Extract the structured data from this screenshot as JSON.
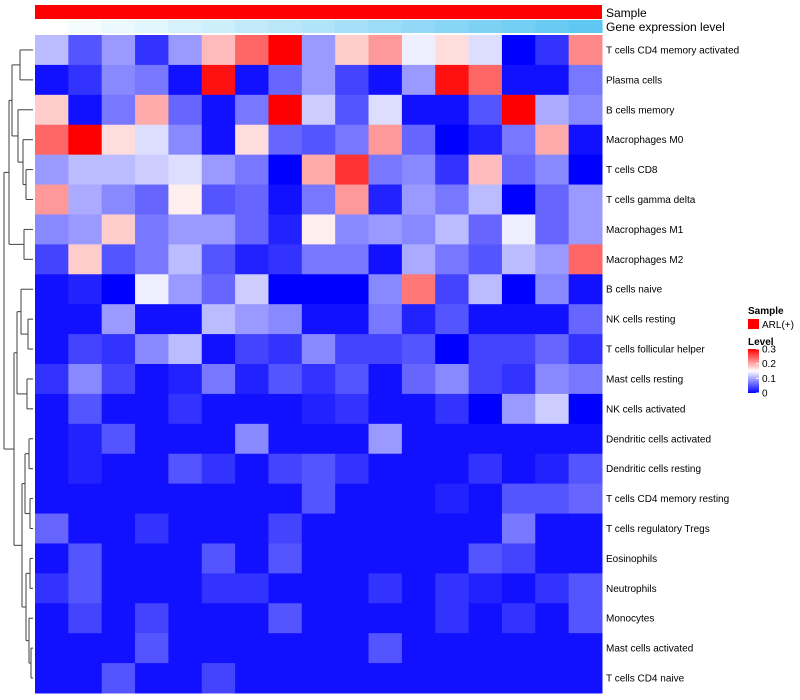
{
  "chart_data": {
    "type": "heatmap",
    "title": "",
    "annotations": [
      {
        "name": "Sample",
        "color": "#ff0000"
      },
      {
        "name": "Gene expression level",
        "gradient": [
          "#ffffff",
          "#5fc8f2"
        ]
      }
    ],
    "rows": [
      "T cells CD4 memory activated",
      "Plasma cells",
      "B cells memory",
      "Macrophages M0",
      "T cells CD8",
      "T cells gamma delta",
      "Macrophages M1",
      "Macrophages M2",
      "B cells naive",
      "NK cells resting",
      "T cells follicular helper",
      "Mast cells resting",
      "NK cells activated",
      "Dendritic cells activated",
      "Dendritic cells resting",
      "T cells CD4 memory resting",
      "T cells regulatory  Tregs",
      "Eosinophils",
      "Neutrophils",
      "Monocytes",
      "Mast cells activated",
      "T cells CD4 naive"
    ],
    "n_columns": 17,
    "values": [
      [
        0.11,
        0.05,
        0.09,
        0.03,
        0.09,
        0.19,
        0.24,
        0.3,
        0.09,
        0.18,
        0.21,
        0.14,
        0.17,
        0.13,
        0.0,
        0.03,
        0.22
      ],
      [
        0.01,
        0.03,
        0.08,
        0.07,
        0.01,
        0.29,
        0.01,
        0.06,
        0.09,
        0.04,
        0.01,
        0.09,
        0.29,
        0.24,
        0.01,
        0.01,
        0.07
      ],
      [
        0.18,
        0.01,
        0.07,
        0.2,
        0.06,
        0.01,
        0.07,
        0.3,
        0.12,
        0.05,
        0.13,
        0.01,
        0.01,
        0.05,
        0.3,
        0.1,
        0.08
      ],
      [
        0.24,
        0.3,
        0.17,
        0.13,
        0.08,
        0.01,
        0.17,
        0.06,
        0.05,
        0.07,
        0.21,
        0.06,
        0.0,
        0.02,
        0.07,
        0.2,
        0.01
      ],
      [
        0.09,
        0.11,
        0.11,
        0.12,
        0.13,
        0.09,
        0.07,
        0.0,
        0.2,
        0.27,
        0.07,
        0.08,
        0.03,
        0.19,
        0.06,
        0.08,
        0.0
      ],
      [
        0.21,
        0.1,
        0.08,
        0.06,
        0.16,
        0.05,
        0.06,
        0.01,
        0.07,
        0.21,
        0.02,
        0.09,
        0.07,
        0.11,
        0.0,
        0.06,
        0.09
      ],
      [
        0.08,
        0.09,
        0.18,
        0.07,
        0.09,
        0.09,
        0.06,
        0.02,
        0.16,
        0.08,
        0.09,
        0.08,
        0.11,
        0.06,
        0.14,
        0.06,
        0.09
      ],
      [
        0.04,
        0.18,
        0.05,
        0.07,
        0.11,
        0.05,
        0.02,
        0.03,
        0.07,
        0.07,
        0.01,
        0.1,
        0.07,
        0.05,
        0.11,
        0.09,
        0.24
      ],
      [
        0.01,
        0.02,
        0.0,
        0.14,
        0.09,
        0.06,
        0.12,
        0.0,
        0.0,
        0.0,
        0.08,
        0.23,
        0.04,
        0.11,
        0.0,
        0.08,
        0.01
      ],
      [
        0.01,
        0.01,
        0.09,
        0.01,
        0.01,
        0.11,
        0.09,
        0.08,
        0.01,
        0.01,
        0.07,
        0.02,
        0.05,
        0.01,
        0.01,
        0.01,
        0.06
      ],
      [
        0.01,
        0.04,
        0.03,
        0.08,
        0.11,
        0.01,
        0.04,
        0.03,
        0.08,
        0.04,
        0.04,
        0.05,
        0.0,
        0.04,
        0.04,
        0.06,
        0.03
      ],
      [
        0.03,
        0.08,
        0.04,
        0.01,
        0.02,
        0.07,
        0.02,
        0.05,
        0.03,
        0.05,
        0.01,
        0.06,
        0.08,
        0.04,
        0.03,
        0.08,
        0.07
      ],
      [
        0.01,
        0.05,
        0.01,
        0.01,
        0.03,
        0.01,
        0.01,
        0.01,
        0.02,
        0.03,
        0.01,
        0.01,
        0.03,
        0.0,
        0.09,
        0.12,
        0.0
      ],
      [
        0.01,
        0.02,
        0.05,
        0.01,
        0.01,
        0.01,
        0.08,
        0.01,
        0.01,
        0.01,
        0.09,
        0.01,
        0.01,
        0.01,
        0.01,
        0.01,
        0.01
      ],
      [
        0.01,
        0.02,
        0.01,
        0.01,
        0.05,
        0.03,
        0.01,
        0.04,
        0.05,
        0.03,
        0.01,
        0.01,
        0.01,
        0.03,
        0.01,
        0.02,
        0.05
      ],
      [
        0.01,
        0.01,
        0.01,
        0.01,
        0.01,
        0.01,
        0.01,
        0.01,
        0.05,
        0.01,
        0.01,
        0.01,
        0.02,
        0.01,
        0.05,
        0.05,
        0.06
      ],
      [
        0.06,
        0.01,
        0.01,
        0.03,
        0.01,
        0.01,
        0.01,
        0.04,
        0.01,
        0.01,
        0.01,
        0.01,
        0.01,
        0.01,
        0.07,
        0.01,
        0.01
      ],
      [
        0.01,
        0.05,
        0.01,
        0.01,
        0.01,
        0.05,
        0.01,
        0.05,
        0.01,
        0.01,
        0.01,
        0.01,
        0.01,
        0.05,
        0.04,
        0.01,
        0.01
      ],
      [
        0.03,
        0.05,
        0.01,
        0.01,
        0.01,
        0.03,
        0.03,
        0.01,
        0.01,
        0.01,
        0.03,
        0.01,
        0.03,
        0.02,
        0.01,
        0.03,
        0.05
      ],
      [
        0.01,
        0.04,
        0.01,
        0.04,
        0.01,
        0.01,
        0.01,
        0.05,
        0.01,
        0.01,
        0.01,
        0.01,
        0.03,
        0.01,
        0.03,
        0.01,
        0.05
      ],
      [
        0.01,
        0.01,
        0.01,
        0.05,
        0.01,
        0.01,
        0.01,
        0.01,
        0.01,
        0.01,
        0.05,
        0.01,
        0.01,
        0.01,
        0.01,
        0.01,
        0.01
      ],
      [
        0.01,
        0.01,
        0.05,
        0.01,
        0.01,
        0.04,
        0.01,
        0.01,
        0.01,
        0.01,
        0.01,
        0.01,
        0.01,
        0.01,
        0.01,
        0.01,
        0.01
      ]
    ],
    "color_scale": {
      "stops": [
        {
          "value": 0,
          "color": "#0000ff"
        },
        {
          "value": 0.15,
          "color": "#ffffff"
        },
        {
          "value": 0.3,
          "color": "#ff0000"
        }
      ]
    },
    "legend": {
      "sample_title": "Sample",
      "sample_entries": [
        {
          "label": "ARL(+)",
          "color": "#ff0000"
        }
      ],
      "level_title": "Level",
      "level_ticks": [
        {
          "value": 0.3,
          "label": "0.3"
        },
        {
          "value": 0.2,
          "label": "0.2"
        },
        {
          "value": 0.1,
          "label": "0.1"
        },
        {
          "value": 0,
          "label": "0"
        }
      ],
      "placement": "right"
    }
  }
}
